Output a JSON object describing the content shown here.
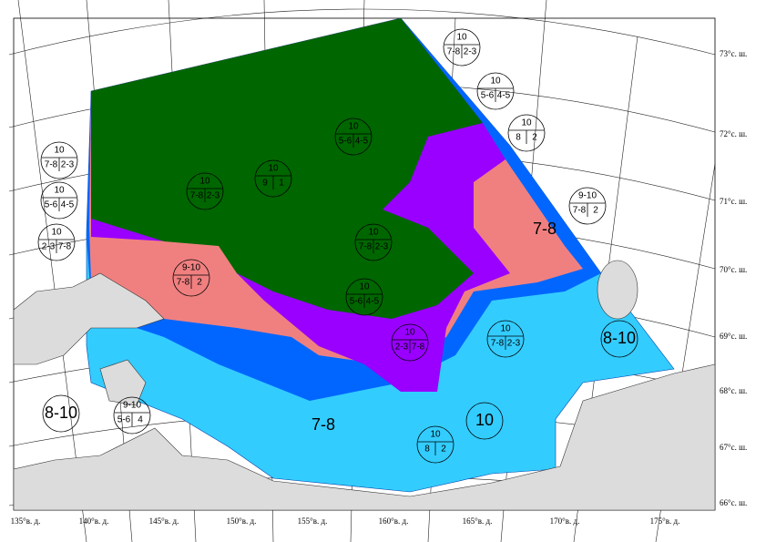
{
  "latitudes": [
    "73°с. ш.",
    "72°с. ш.",
    "71°с. ш.",
    "70°с. ш.",
    "69°с. ш.",
    "68°с. ш.",
    "67°с. ш.",
    "66°с. ш."
  ],
  "longitudes": [
    "135°в. д.",
    "140°в. д.",
    "145°в. д.",
    "150°в. д.",
    "155°в. д.",
    "160°в. д.",
    "165°в. д.",
    "170°в. д.",
    "175°в. д."
  ],
  "egg_codes": [
    {
      "total": "10",
      "left": "7-8",
      "right": "2-3"
    },
    {
      "total": "10",
      "left": "5-6",
      "right": "4-5"
    },
    {
      "total": "10",
      "left": "8",
      "right": "2"
    },
    {
      "total": "9-10",
      "left": "7-8",
      "right": "2"
    },
    {
      "total": "10",
      "left": "7-8",
      "right": "2-3"
    },
    {
      "total": "10",
      "left": "5-6",
      "right": "4-5"
    },
    {
      "total": "10",
      "left": "2-3",
      "right": "7-8"
    },
    {
      "total": "10",
      "left": "7-8",
      "right": "2-3"
    },
    {
      "total": "10",
      "left": "9",
      "right": "1"
    },
    {
      "total": "10",
      "left": "5-6",
      "right": "4-5"
    },
    {
      "total": "10",
      "left": "7-8",
      "right": "2-3"
    },
    {
      "total": "10",
      "left": "5-6",
      "right": "4-5"
    },
    {
      "total": "9-10",
      "left": "7-8",
      "right": "2"
    },
    {
      "total": "10",
      "left": "2-3",
      "right": "7-8"
    },
    {
      "total": "10",
      "left": "7-8",
      "right": "2-3"
    },
    {
      "total": "9-10",
      "left": "5-6",
      "right": "4"
    },
    {
      "total": "10",
      "left": "8",
      "right": "2"
    }
  ],
  "region_labels": [
    "7-8",
    "8-10",
    "8-10",
    "7-8",
    "10"
  ]
}
